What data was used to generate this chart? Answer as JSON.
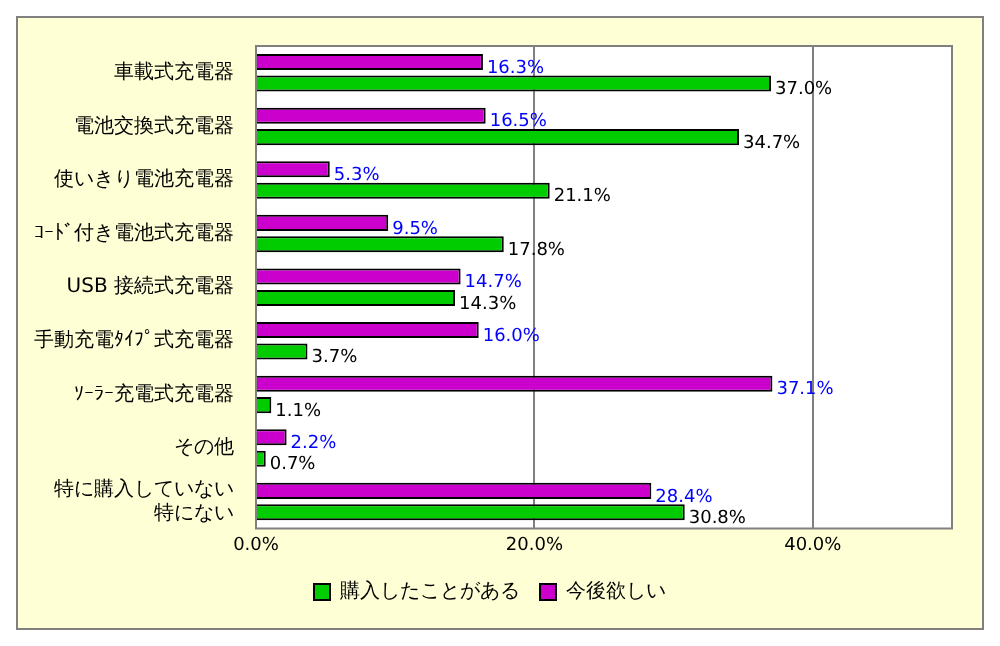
{
  "chart_data": {
    "type": "bar",
    "orientation": "horizontal",
    "categories": [
      "車載式充電器",
      "電池交換式充電器",
      "使いきり電池充電器",
      "ｺｰﾄﾞ付き電池式充電器",
      "USB 接続式充電器",
      "手動充電ﾀｲﾌﾟ式充電器",
      "ｿｰﾗｰ充電式充電器",
      "その他",
      "特に購入していない特にない"
    ],
    "series": [
      {
        "name": "購入したことがある",
        "color": "#00cc00",
        "values": [
          37.0,
          34.7,
          21.1,
          17.8,
          14.3,
          3.7,
          1.1,
          0.7,
          30.8
        ],
        "value_labels": [
          "37.0%",
          "34.7%",
          "21.1%",
          "17.8%",
          "14.3%",
          "3.7%",
          "1.1%",
          "0.7%",
          "30.8%"
        ]
      },
      {
        "name": "今後欲しい",
        "color": "#cc00cc",
        "values": [
          16.3,
          16.5,
          5.3,
          9.5,
          14.7,
          16.0,
          37.1,
          2.2,
          28.4
        ],
        "value_labels": [
          "16.3%",
          "16.5%",
          "5.3%",
          "9.5%",
          "14.7%",
          "16.0%",
          "37.1%",
          "2.2%",
          "28.4%"
        ]
      }
    ],
    "xlim": [
      0,
      50
    ],
    "xticks": [
      {
        "value": 0,
        "label": "0.0%"
      },
      {
        "value": 20,
        "label": "20.0%"
      },
      {
        "value": 40,
        "label": "40.0%"
      }
    ],
    "grid": "x",
    "legend": "bottom"
  }
}
